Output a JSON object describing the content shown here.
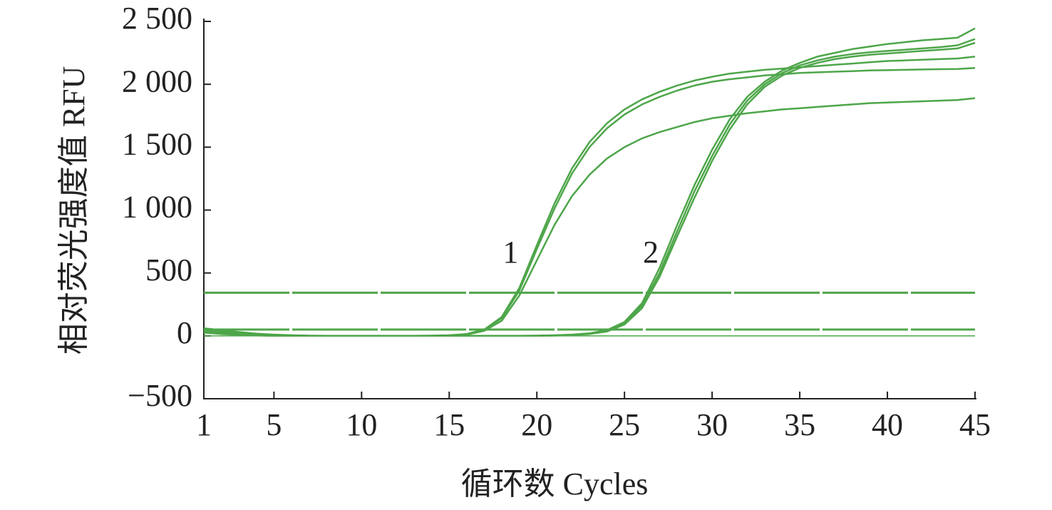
{
  "chart_data": {
    "type": "line",
    "xlabel": "循环数 Cycles",
    "ylabel": "相对荧光强度值 RFU",
    "x": [
      1,
      2,
      3,
      4,
      5,
      6,
      7,
      8,
      9,
      10,
      11,
      12,
      13,
      14,
      15,
      16,
      17,
      18,
      19,
      20,
      21,
      22,
      23,
      24,
      25,
      26,
      27,
      28,
      29,
      30,
      31,
      32,
      33,
      34,
      35,
      36,
      37,
      38,
      39,
      40,
      41,
      42,
      43,
      44,
      45
    ],
    "xlim": [
      1,
      45
    ],
    "xticks": [
      1,
      5,
      10,
      15,
      20,
      25,
      30,
      35,
      40,
      45
    ],
    "ylim": [
      -500,
      2500
    ],
    "yticks": [
      {
        "value": -500,
        "label": "−500"
      },
      0,
      500,
      {
        "value": 1000,
        "label": "1 000"
      },
      {
        "value": 1500,
        "label": "1 500"
      },
      {
        "value": 2000,
        "label": "2 000"
      },
      {
        "value": 2500,
        "label": "2 500"
      }
    ],
    "color": "#4ea64a",
    "hlines": [
      {
        "value": 343,
        "dashed": true
      },
      {
        "value": 50,
        "dashed": true
      },
      {
        "value": 0,
        "dashed": false
      }
    ],
    "annotations": [
      {
        "text": "1",
        "x": 18.5,
        "y": 640
      },
      {
        "text": "2",
        "x": 26.5,
        "y": 640
      }
    ],
    "series": [
      {
        "values": [
          60,
          45,
          30,
          18,
          10,
          5,
          2,
          0,
          0,
          0,
          0,
          0,
          0,
          2,
          5,
          15,
          50,
          150,
          380,
          720,
          1050,
          1330,
          1540,
          1690,
          1800,
          1880,
          1940,
          1990,
          2030,
          2060,
          2085,
          2100,
          2115,
          2125,
          2135,
          2145,
          2155,
          2165,
          2175,
          2185,
          2190,
          2195,
          2200,
          2205,
          2220
        ]
      },
      {
        "values": [
          50,
          38,
          25,
          15,
          8,
          4,
          1,
          0,
          0,
          0,
          0,
          0,
          0,
          1,
          4,
          12,
          45,
          140,
          360,
          690,
          1010,
          1290,
          1500,
          1650,
          1760,
          1840,
          1900,
          1950,
          1990,
          2020,
          2040,
          2055,
          2070,
          2080,
          2090,
          2095,
          2100,
          2105,
          2110,
          2112,
          2115,
          2118,
          2120,
          2122,
          2130
        ]
      },
      {
        "values": [
          45,
          32,
          20,
          12,
          6,
          3,
          1,
          0,
          0,
          0,
          0,
          0,
          0,
          1,
          3,
          10,
          40,
          120,
          320,
          600,
          880,
          1110,
          1280,
          1410,
          1500,
          1570,
          1620,
          1660,
          1700,
          1730,
          1750,
          1770,
          1785,
          1800,
          1810,
          1820,
          1830,
          1840,
          1850,
          1855,
          1860,
          1865,
          1870,
          1875,
          1890
        ]
      },
      {
        "values": [
          40,
          25,
          12,
          5,
          2,
          0,
          0,
          0,
          0,
          0,
          0,
          0,
          0,
          0,
          0,
          0,
          0,
          0,
          0,
          2,
          5,
          10,
          20,
          45,
          110,
          260,
          540,
          880,
          1200,
          1480,
          1720,
          1900,
          2020,
          2110,
          2170,
          2220,
          2250,
          2280,
          2300,
          2320,
          2335,
          2350,
          2360,
          2370,
          2445
        ]
      },
      {
        "values": [
          30,
          20,
          10,
          4,
          1,
          0,
          0,
          0,
          0,
          0,
          0,
          0,
          0,
          0,
          0,
          0,
          0,
          0,
          0,
          1,
          3,
          8,
          18,
          40,
          100,
          240,
          500,
          830,
          1150,
          1430,
          1680,
          1870,
          2000,
          2090,
          2150,
          2190,
          2220,
          2240,
          2255,
          2265,
          2275,
          2285,
          2295,
          2310,
          2360
        ]
      },
      {
        "values": [
          25,
          15,
          8,
          3,
          1,
          0,
          0,
          0,
          0,
          0,
          0,
          0,
          0,
          0,
          0,
          0,
          0,
          0,
          0,
          1,
          2,
          6,
          15,
          35,
          90,
          220,
          470,
          790,
          1100,
          1390,
          1640,
          1840,
          1980,
          2070,
          2130,
          2170,
          2200,
          2220,
          2235,
          2245,
          2255,
          2265,
          2275,
          2285,
          2330
        ]
      }
    ]
  }
}
